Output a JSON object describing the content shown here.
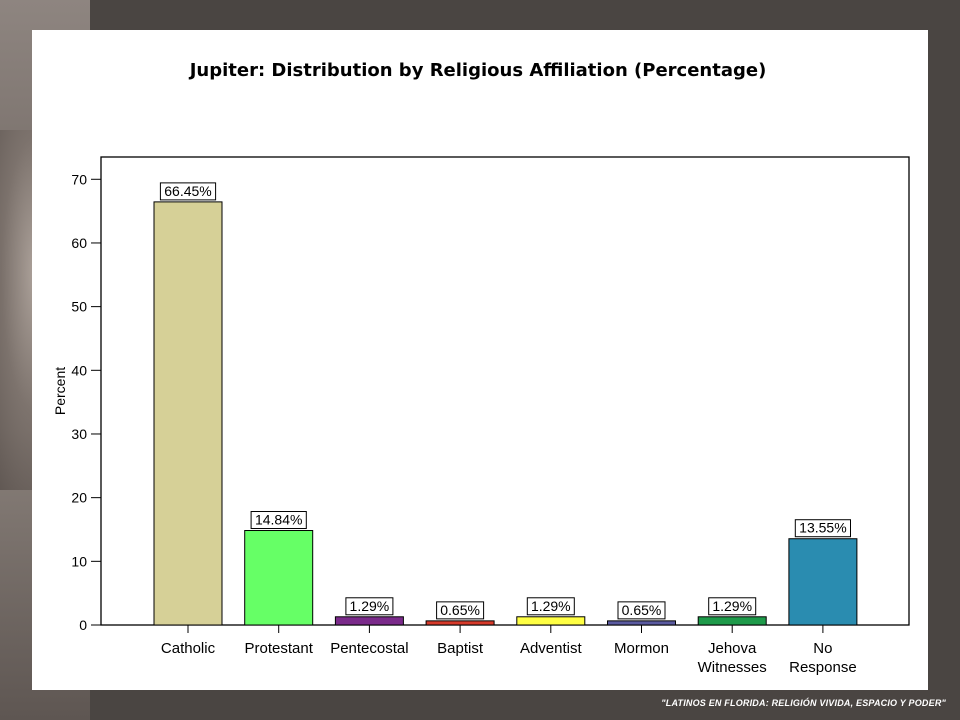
{
  "footer_text": "\"LATINOS EN FLORIDA: RELIGIÓN VIVIDA, ESPACIO Y PODER\"",
  "chart_data": {
    "type": "bar",
    "title": "Jupiter: Distribution by Religious Affiliation (Percentage)",
    "xlabel": "",
    "ylabel": "Percent",
    "ylim": [
      0,
      73.5
    ],
    "yticks": [
      0,
      10,
      20,
      30,
      40,
      50,
      60,
      70
    ],
    "grid": false,
    "categories": [
      "Catholic",
      "Protestant",
      "Pentecostal",
      "Baptist",
      "Adventist",
      "Mormon",
      "Jehova Witnesses",
      "No Response"
    ],
    "category_lines": [
      [
        "Catholic"
      ],
      [
        "Protestant"
      ],
      [
        "Pentecostal"
      ],
      [
        "Baptist"
      ],
      [
        "Adventist"
      ],
      [
        "Mormon"
      ],
      [
        "Jehova",
        "Witnesses"
      ],
      [
        "No",
        "Response"
      ]
    ],
    "values": [
      66.45,
      14.84,
      1.29,
      0.65,
      1.29,
      0.65,
      1.29,
      13.55
    ],
    "data_labels": [
      "66.45%",
      "14.84%",
      "1.29%",
      "0.65%",
      "1.29%",
      "0.65%",
      "1.29%",
      "13.55%"
    ],
    "colors": [
      "#d6d097",
      "#66ff66",
      "#7a2a8a",
      "#d63a2a",
      "#ffff44",
      "#5a5aa0",
      "#1e9a4a",
      "#2a8cb0"
    ]
  }
}
